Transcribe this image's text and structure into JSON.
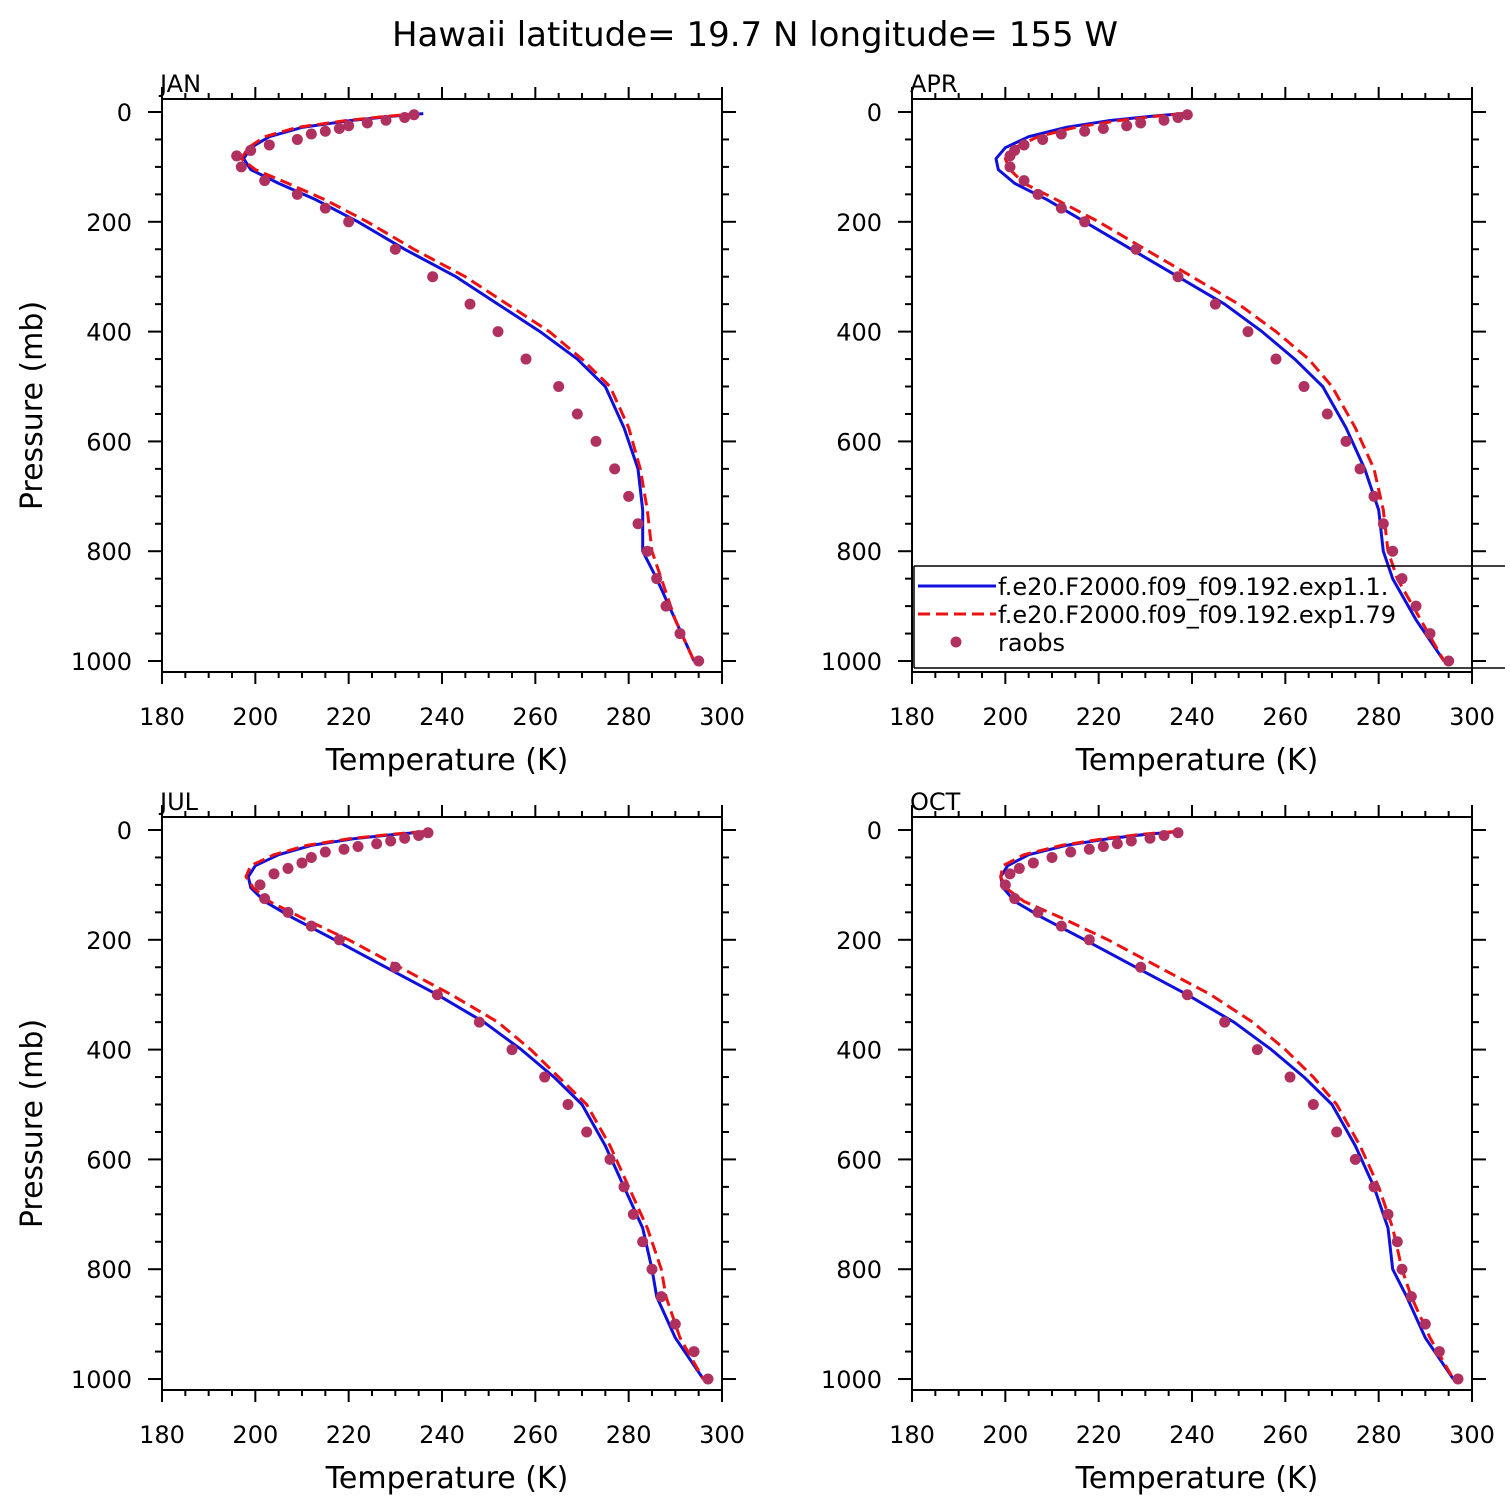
{
  "figure_title": "Hawaii  latitude= 19.7 N longitude= 155 W",
  "colors": {
    "model1": "#1010dd",
    "model2": "#ee1111",
    "obs": "#b03060"
  },
  "legend": {
    "entries": [
      {
        "label": "f.e20.F2000.f09_f09.192.exp1.1.",
        "style": "solid-line",
        "color": "#1010dd"
      },
      {
        "label": "f.e20.F2000.f09_f09.192.exp1.79",
        "style": "dashed-line",
        "color": "#ee1111"
      },
      {
        "label": "raobs",
        "style": "dot",
        "color": "#b03060"
      }
    ]
  },
  "chart_data": [
    {
      "type": "line",
      "title": "JAN",
      "xlabel": "Temperature (K)",
      "ylabel": "Pressure (mb)",
      "xlim": [
        180,
        300
      ],
      "ylim": [
        1020,
        0
      ],
      "xticks": [
        180,
        200,
        220,
        240,
        260,
        280,
        300
      ],
      "yticks": [
        0,
        200,
        400,
        600,
        800,
        1000
      ],
      "show_ylabel": true,
      "series": [
        {
          "name": "f.e20.F2000.f09_f09.192.exp1.1.",
          "style": "solid",
          "x": [
            236,
            229,
            220,
            210,
            203,
            199,
            197.5,
            199,
            205,
            213,
            222,
            232,
            243,
            252,
            261,
            269,
            275,
            279,
            282,
            283,
            283,
            286,
            290,
            294
          ],
          "y": [
            3,
            8,
            16,
            28,
            45,
            65,
            85,
            105,
            130,
            160,
            200,
            250,
            300,
            350,
            400,
            450,
            500,
            575,
            650,
            725,
            800,
            850,
            925,
            1000
          ]
        },
        {
          "name": "f.e20.F2000.f09_f09.192.exp1.79",
          "style": "dashed",
          "x": [
            235,
            228,
            219,
            209,
            202,
            198.5,
            197,
            200,
            207,
            215,
            224,
            234,
            245,
            254,
            263,
            270,
            276,
            280,
            282.5,
            284,
            285,
            287,
            290,
            294
          ],
          "y": [
            3,
            8,
            16,
            28,
            45,
            65,
            85,
            105,
            130,
            160,
            200,
            250,
            300,
            350,
            400,
            450,
            500,
            575,
            650,
            725,
            800,
            850,
            925,
            1000
          ]
        },
        {
          "name": "raobs",
          "style": "dots",
          "x": [
            234,
            232,
            228,
            224,
            220,
            218,
            215,
            212,
            209,
            203,
            199,
            196,
            197,
            202,
            209,
            215,
            220,
            230,
            238,
            246,
            252,
            258,
            265,
            269,
            273,
            277,
            280,
            282,
            284,
            286,
            288,
            291,
            295
          ],
          "y": [
            5,
            10,
            15,
            20,
            25,
            30,
            35,
            40,
            50,
            60,
            70,
            80,
            100,
            125,
            150,
            175,
            200,
            250,
            300,
            350,
            400,
            450,
            500,
            550,
            600,
            650,
            700,
            750,
            800,
            850,
            900,
            950,
            1000
          ]
        }
      ]
    },
    {
      "type": "line",
      "title": "APR",
      "xlabel": "Temperature (K)",
      "ylabel": "",
      "xlim": [
        180,
        300
      ],
      "ylim": [
        1020,
        0
      ],
      "xticks": [
        180,
        200,
        220,
        240,
        260,
        280,
        300
      ],
      "yticks": [
        0,
        200,
        400,
        600,
        800,
        1000
      ],
      "show_ylabel": false,
      "series": [
        {
          "name": "f.e20.F2000.f09_f09.192.exp1.1.",
          "style": "solid",
          "x": [
            238,
            231,
            222,
            213,
            205,
            200,
            198,
            198.5,
            202,
            209,
            217,
            227,
            237,
            247,
            255,
            262,
            268,
            273,
            277,
            280,
            281,
            283,
            288,
            294
          ],
          "y": [
            3,
            8,
            16,
            28,
            45,
            65,
            85,
            105,
            130,
            160,
            200,
            250,
            300,
            350,
            400,
            450,
            500,
            575,
            650,
            725,
            800,
            850,
            925,
            1000
          ]
        },
        {
          "name": "f.e20.F2000.f09_f09.192.exp1.79",
          "style": "dashed",
          "x": [
            238,
            232,
            224,
            215,
            207,
            202,
            200,
            201,
            204,
            211,
            220,
            230,
            240,
            250,
            258,
            265,
            270,
            275,
            279,
            281,
            282,
            284,
            289,
            294
          ],
          "y": [
            3,
            8,
            16,
            28,
            45,
            65,
            85,
            105,
            130,
            160,
            200,
            250,
            300,
            350,
            400,
            450,
            500,
            575,
            650,
            725,
            800,
            850,
            925,
            1000
          ]
        },
        {
          "name": "raobs",
          "style": "dots",
          "x": [
            239,
            237,
            234,
            229,
            226,
            221,
            217,
            212,
            208,
            204,
            202,
            201,
            201,
            204,
            207,
            212,
            217,
            228,
            237,
            245,
            252,
            258,
            264,
            269,
            273,
            276,
            279,
            281,
            283,
            285,
            288,
            291,
            295
          ],
          "y": [
            5,
            10,
            15,
            20,
            25,
            30,
            35,
            40,
            50,
            60,
            70,
            80,
            100,
            125,
            150,
            175,
            200,
            250,
            300,
            350,
            400,
            450,
            500,
            550,
            600,
            650,
            700,
            750,
            800,
            850,
            900,
            950,
            1000
          ]
        }
      ]
    },
    {
      "type": "line",
      "title": "JUL",
      "xlabel": "Temperature (K)",
      "ylabel": "Pressure (mb)",
      "xlim": [
        180,
        300
      ],
      "ylim": [
        1020,
        0
      ],
      "xticks": [
        180,
        200,
        220,
        240,
        260,
        280,
        300
      ],
      "yticks": [
        0,
        200,
        400,
        600,
        800,
        1000
      ],
      "show_ylabel": true,
      "series": [
        {
          "name": "f.e20.F2000.f09_f09.192.exp1.1.",
          "style": "solid",
          "x": [
            237,
            230,
            221,
            212,
            205,
            200,
            198.5,
            199,
            202,
            208,
            217,
            228,
            239,
            249,
            257,
            264,
            270,
            275,
            279,
            283,
            285,
            286,
            290,
            296
          ],
          "y": [
            3,
            8,
            16,
            28,
            45,
            65,
            85,
            105,
            130,
            160,
            200,
            250,
            300,
            350,
            400,
            450,
            500,
            575,
            650,
            725,
            800,
            850,
            925,
            1000
          ]
        },
        {
          "name": "f.e20.F2000.f09_f09.192.exp1.79",
          "style": "dashed",
          "x": [
            236,
            229,
            220,
            211,
            204,
            199,
            198,
            199.5,
            203,
            210,
            220,
            231,
            242,
            252,
            259,
            265,
            271,
            276,
            280,
            284,
            287,
            288,
            291,
            296
          ],
          "y": [
            3,
            8,
            16,
            28,
            45,
            65,
            85,
            105,
            130,
            160,
            200,
            250,
            300,
            350,
            400,
            450,
            500,
            575,
            650,
            725,
            800,
            850,
            925,
            1000
          ]
        },
        {
          "name": "raobs",
          "style": "dots",
          "x": [
            237,
            235,
            232,
            229,
            226,
            222,
            219,
            215,
            212,
            210,
            207,
            204,
            201,
            202,
            207,
            212,
            218,
            230,
            239,
            248,
            255,
            262,
            267,
            271,
            276,
            279,
            281,
            283,
            285,
            287,
            290,
            294,
            297
          ],
          "y": [
            5,
            10,
            15,
            20,
            25,
            30,
            35,
            40,
            50,
            60,
            70,
            80,
            100,
            125,
            150,
            175,
            200,
            250,
            300,
            350,
            400,
            450,
            500,
            550,
            600,
            650,
            700,
            750,
            800,
            850,
            900,
            950,
            1000
          ]
        }
      ]
    },
    {
      "type": "line",
      "title": "OCT",
      "xlabel": "Temperature (K)",
      "ylabel": "",
      "xlim": [
        180,
        300
      ],
      "ylim": [
        1020,
        0
      ],
      "xticks": [
        180,
        200,
        220,
        240,
        260,
        280,
        300
      ],
      "yticks": [
        0,
        200,
        400,
        600,
        800,
        1000
      ],
      "show_ylabel": false,
      "series": [
        {
          "name": "f.e20.F2000.f09_f09.192.exp1.1.",
          "style": "solid",
          "x": [
            237,
            230,
            222,
            213,
            205,
            200.5,
            199,
            199.5,
            202,
            208,
            217,
            228,
            239,
            249,
            257,
            264,
            270,
            275,
            279,
            282,
            283,
            286,
            290,
            296
          ],
          "y": [
            3,
            8,
            16,
            28,
            45,
            65,
            85,
            105,
            130,
            160,
            200,
            250,
            300,
            350,
            400,
            450,
            500,
            575,
            650,
            725,
            800,
            850,
            925,
            1000
          ]
        },
        {
          "name": "f.e20.F2000.f09_f09.192.exp1.79",
          "style": "dashed",
          "x": [
            236,
            229,
            221,
            212,
            204,
            199.5,
            199,
            200,
            204,
            212,
            222,
            233,
            244,
            253,
            260,
            266,
            271,
            276,
            280,
            283,
            285,
            287,
            291,
            296
          ],
          "y": [
            3,
            8,
            16,
            28,
            45,
            65,
            85,
            105,
            130,
            160,
            200,
            250,
            300,
            350,
            400,
            450,
            500,
            575,
            650,
            725,
            800,
            850,
            925,
            1000
          ]
        },
        {
          "name": "raobs",
          "style": "dots",
          "x": [
            237,
            234,
            231,
            227,
            224,
            221,
            218,
            214,
            210,
            206,
            203,
            201,
            200,
            202,
            207,
            212,
            218,
            229,
            239,
            247,
            254,
            261,
            266,
            271,
            275,
            279,
            282,
            284,
            285,
            287,
            290,
            293,
            297
          ],
          "y": [
            5,
            10,
            15,
            20,
            25,
            30,
            35,
            40,
            50,
            60,
            70,
            80,
            100,
            125,
            150,
            175,
            200,
            250,
            300,
            350,
            400,
            450,
            500,
            550,
            600,
            650,
            700,
            750,
            800,
            850,
            900,
            950,
            1000
          ]
        }
      ]
    }
  ]
}
